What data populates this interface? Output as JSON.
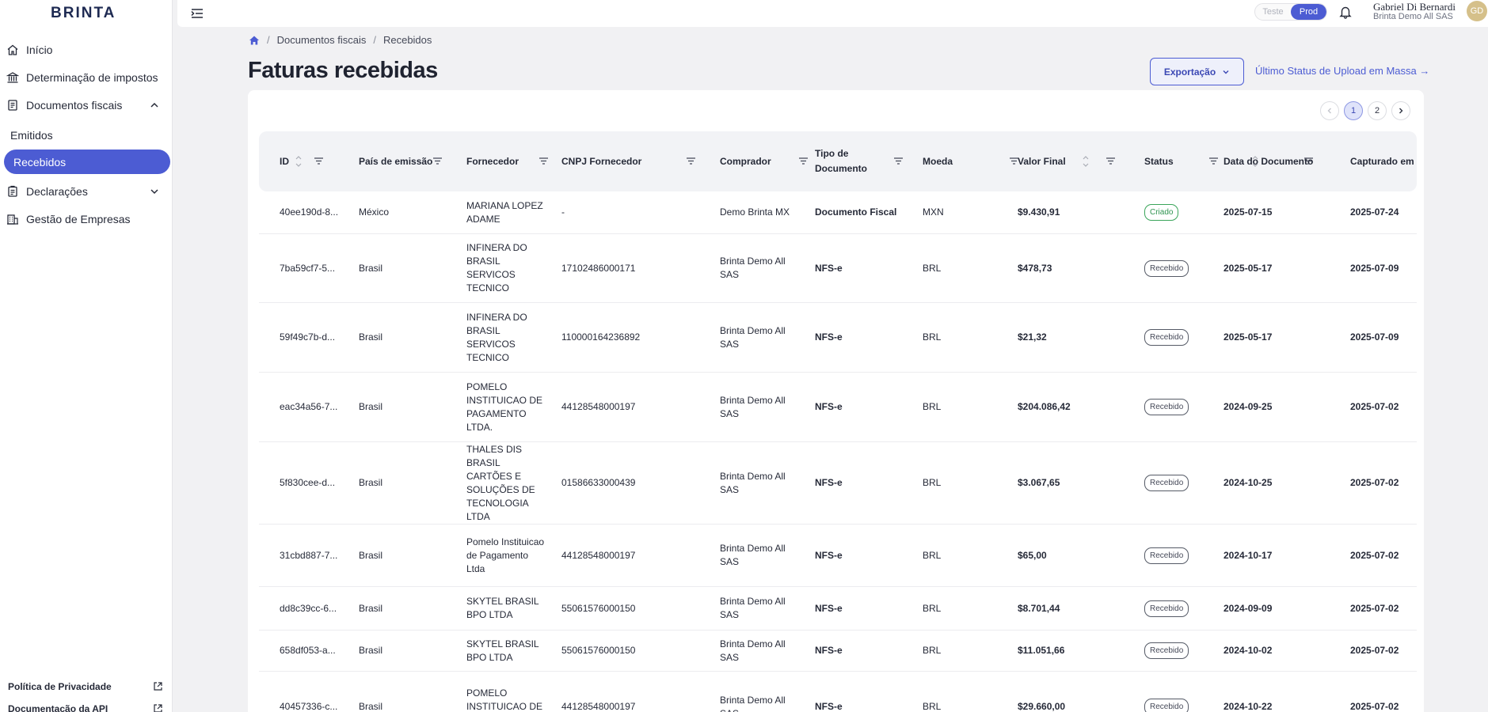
{
  "app": {
    "logo": "BRINTA"
  },
  "sidebar": {
    "items": [
      {
        "label": "Início",
        "icon": "home-icon"
      },
      {
        "label": "Determinação de impostos",
        "icon": "bank-icon"
      },
      {
        "label": "Documentos fiscais",
        "icon": "document-icon"
      },
      {
        "label": "Declarações",
        "icon": "clipboard-icon"
      },
      {
        "label": "Gestão de Empresas",
        "icon": "building-icon"
      }
    ],
    "sub_items": [
      {
        "label": "Emitidos"
      },
      {
        "label": "Recebidos"
      }
    ],
    "footer": [
      {
        "label": "Política de Privacidade"
      },
      {
        "label": "Documentação da API"
      }
    ]
  },
  "topbar": {
    "env_test": "Teste",
    "env_prod": "Prod",
    "user_name": "Gabriel Di Bernardi",
    "user_org": "Brinta Demo All SAS",
    "avatar_initials": "GD"
  },
  "breadcrumb": {
    "level1": "Documentos fiscais",
    "level2": "Recebidos"
  },
  "page": {
    "title": "Faturas recebidas",
    "export_label": "Exportação",
    "mass_status_link": "Último Status de Upload em Massa →"
  },
  "pagination": {
    "pages": [
      "1",
      "2"
    ],
    "current": "1"
  },
  "table": {
    "headers": [
      "ID",
      "País de emissão",
      "Fornecedor",
      "CNPJ Fornecedor",
      "Comprador",
      "Tipo de Documento",
      "Moeda",
      "Valor Final",
      "Status",
      "Data do Documento",
      "Capturado em"
    ],
    "rows": [
      {
        "id": "40ee190d-8...",
        "country": "México",
        "supplier": "MARIANA LOPEZ ADAME",
        "cnpj": "-",
        "buyer": "Demo Brinta MX",
        "doc_type": "Documento Fiscal",
        "currency": "MXN",
        "value": "$9.430,91",
        "status": "Criado",
        "doc_date": "2025-07-15",
        "captured": "2025-07-24"
      },
      {
        "id": "7ba59cf7-5...",
        "country": "Brasil",
        "supplier": "INFINERA DO BRASIL SERVICOS TECNICO",
        "cnpj": "17102486000171",
        "buyer": "Brinta Demo All SAS",
        "doc_type": "NFS-e",
        "currency": "BRL",
        "value": "$478,73",
        "status": "Recebido",
        "doc_date": "2025-05-17",
        "captured": "2025-07-09"
      },
      {
        "id": "59f49c7b-d...",
        "country": "Brasil",
        "supplier": "INFINERA DO BRASIL SERVICOS TECNICO",
        "cnpj": "110000164236892",
        "buyer": "Brinta Demo All SAS",
        "doc_type": "NFS-e",
        "currency": "BRL",
        "value": "$21,32",
        "status": "Recebido",
        "doc_date": "2025-05-17",
        "captured": "2025-07-09"
      },
      {
        "id": "eac34a56-7...",
        "country": "Brasil",
        "supplier": "POMELO INSTITUICAO DE PAGAMENTO LTDA.",
        "cnpj": "44128548000197",
        "buyer": "Brinta Demo All SAS",
        "doc_type": "NFS-e",
        "currency": "BRL",
        "value": "$204.086,42",
        "status": "Recebido",
        "doc_date": "2024-09-25",
        "captured": "2025-07-02"
      },
      {
        "id": "5f830cee-d...",
        "country": "Brasil",
        "supplier": "THALES DIS BRASIL CARTÕES E SOLUÇÕES DE TECNOLOGIA LTDA",
        "cnpj": "01586633000439",
        "buyer": "Brinta Demo All SAS",
        "doc_type": "NFS-e",
        "currency": "BRL",
        "value": "$3.067,65",
        "status": "Recebido",
        "doc_date": "2024-10-25",
        "captured": "2025-07-02"
      },
      {
        "id": "31cbd887-7...",
        "country": "Brasil",
        "supplier": "Pomelo Instituicao de Pagamento Ltda",
        "cnpj": "44128548000197",
        "buyer": "Brinta Demo All SAS",
        "doc_type": "NFS-e",
        "currency": "BRL",
        "value": "$65,00",
        "status": "Recebido",
        "doc_date": "2024-10-17",
        "captured": "2025-07-02"
      },
      {
        "id": "dd8c39cc-6...",
        "country": "Brasil",
        "supplier": "SKYTEL BRASIL BPO LTDA",
        "cnpj": "55061576000150",
        "buyer": "Brinta Demo All SAS",
        "doc_type": "NFS-e",
        "currency": "BRL",
        "value": "$8.701,44",
        "status": "Recebido",
        "doc_date": "2024-09-09",
        "captured": "2025-07-02"
      },
      {
        "id": "658df053-a...",
        "country": "Brasil",
        "supplier": "SKYTEL BRASIL BPO LTDA",
        "cnpj": "55061576000150",
        "buyer": "Brinta Demo All SAS",
        "doc_type": "NFS-e",
        "currency": "BRL",
        "value": "$11.051,66",
        "status": "Recebido",
        "doc_date": "2024-10-02",
        "captured": "2025-07-02"
      },
      {
        "id": "40457336-c...",
        "country": "Brasil",
        "supplier": "POMELO INSTITUICAO DE PAGAMENTO",
        "cnpj": "44128548000197",
        "buyer": "Brinta Demo All SAS",
        "doc_type": "NFS-e",
        "currency": "BRL",
        "value": "$29.660,00",
        "status": "Recebido",
        "doc_date": "2024-10-22",
        "captured": "2025-07-02"
      }
    ]
  },
  "colors": {
    "accent": "#4c5cd3",
    "status_created": "#3aa55a",
    "status_received": "#555a66"
  }
}
